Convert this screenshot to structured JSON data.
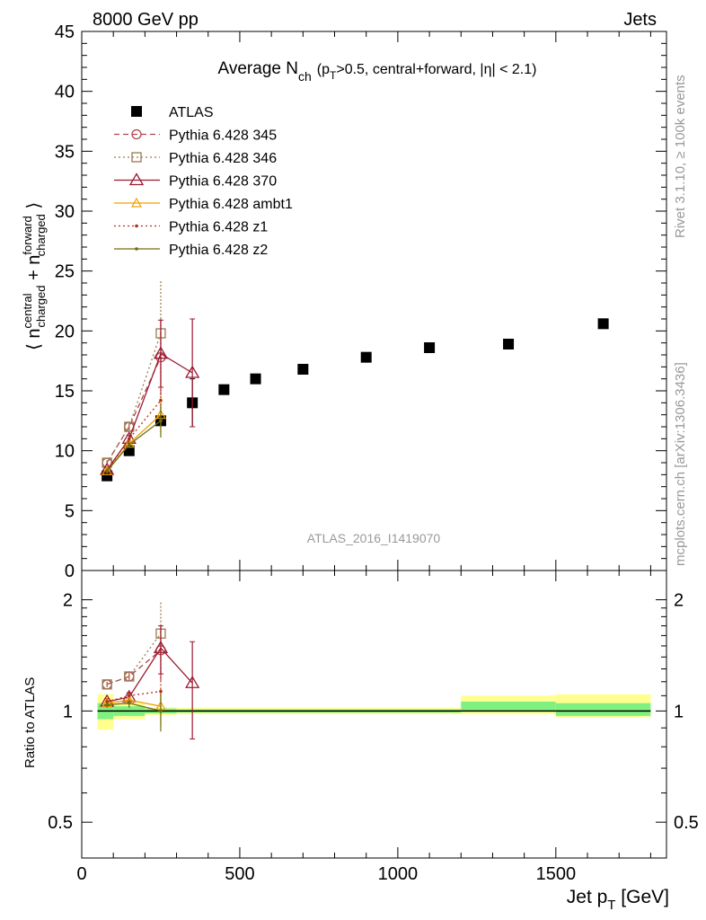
{
  "header": {
    "left": "8000 GeV pp",
    "right": "Jets"
  },
  "side_texts": {
    "rivet": "Rivet 3.1.10, ≥ 100k events",
    "mcplots": "mcplots.cern.ch [arXiv:1306.3436]"
  },
  "watermark": "ATLAS_2016_I1419070",
  "colors": {
    "ATLAS": "#000000",
    "p345": "#b0454f",
    "p346": "#9a7a4e",
    "p370": "#9c1a30",
    "ambt1": "#f0a000",
    "z1": "#b03020",
    "z2": "#6e6e10",
    "band_inner": "#80f080",
    "band_outer": "#ffff90"
  },
  "chart_data": [
    {
      "type": "scatter",
      "title": "Average N",
      "title_sub": "ch",
      "title_cond": "(p",
      "title_cond_sub": "T",
      "title_cond_rest": ">0.5, central+forward, |η| < 2.1)",
      "ylabel_parts": [
        "⟨ n",
        "central",
        "charged",
        " + n",
        "forward",
        "charged",
        " ⟩"
      ],
      "ylim": [
        0,
        45
      ],
      "yticks": [
        0,
        5,
        10,
        15,
        20,
        25,
        30,
        35,
        40,
        45
      ],
      "xlim": [
        0,
        1850
      ],
      "series": [
        {
          "name": "ATLAS",
          "key": "ATLAS",
          "marker": "square-filled",
          "line": "none",
          "points": [
            [
              80,
              7.9
            ],
            [
              150,
              10.0
            ],
            [
              250,
              12.5
            ],
            [
              350,
              14.0
            ],
            [
              450,
              15.1
            ],
            [
              550,
              16.0
            ],
            [
              700,
              16.8
            ],
            [
              900,
              17.8
            ],
            [
              1100,
              18.6
            ],
            [
              1350,
              18.9
            ],
            [
              1650,
              20.6
            ]
          ],
          "yerr": [
            0.3,
            0.3,
            0.3,
            2.0,
            0.3,
            0.3,
            0.3,
            0.3,
            0.3,
            0.3,
            0.3
          ]
        },
        {
          "name": "Pythia 6.428 345",
          "key": "p345",
          "marker": "circle-open",
          "line": "dashed",
          "points": [
            [
              80,
              9.0
            ],
            [
              150,
              12.0
            ],
            [
              250,
              17.8
            ]
          ],
          "yerr": [
            0.2,
            0.3,
            3.2
          ]
        },
        {
          "name": "Pythia 6.428 346",
          "key": "p346",
          "marker": "square-open",
          "line": "dotted",
          "points": [
            [
              80,
              9.0
            ],
            [
              150,
              12.0
            ],
            [
              250,
              19.8
            ]
          ],
          "yerr": [
            0.2,
            0.3,
            4.5
          ]
        },
        {
          "name": "Pythia 6.428 370",
          "key": "p370",
          "marker": "triangle-open",
          "line": "solid",
          "points": [
            [
              80,
              8.4
            ],
            [
              150,
              11.0
            ],
            [
              250,
              18.1
            ],
            [
              350,
              16.5
            ]
          ],
          "yerr": [
            0.2,
            0.3,
            2.8,
            4.5
          ]
        },
        {
          "name": "Pythia 6.428 ambt1",
          "key": "ambt1",
          "marker": "triangle-open-small",
          "line": "solid",
          "points": [
            [
              80,
              8.3
            ],
            [
              150,
              10.6
            ],
            [
              250,
              13.0
            ]
          ],
          "yerr": [
            0.2,
            0.3,
            1.5
          ]
        },
        {
          "name": "Pythia 6.428 z1",
          "key": "z1",
          "marker": "dot",
          "line": "dotted",
          "points": [
            [
              80,
              8.3
            ],
            [
              150,
              11.0
            ],
            [
              250,
              14.2
            ]
          ],
          "yerr": [
            0.2,
            0.3,
            1.6
          ]
        },
        {
          "name": "Pythia 6.428 z2",
          "key": "z2",
          "marker": "dot",
          "line": "solid",
          "points": [
            [
              80,
              8.3
            ],
            [
              150,
              10.5
            ],
            [
              250,
              12.5
            ]
          ],
          "yerr": [
            0.2,
            0.3,
            1.4
          ]
        }
      ]
    },
    {
      "type": "scatter",
      "ylabel": "Ratio to ATLAS",
      "xlabel": "Jet p",
      "xlabel_sub": "T",
      "xlabel_unit": " [GeV]",
      "yscale": "log",
      "ylim": [
        0.4,
        2.4
      ],
      "yticks": [
        0.5,
        1,
        2
      ],
      "xlim": [
        0,
        1850
      ],
      "xticks": [
        0,
        500,
        1000,
        1500
      ],
      "bands": [
        {
          "x0": 50,
          "x1": 100,
          "inner": [
            0.95,
            1.05
          ],
          "outer": [
            0.89,
            1.11
          ]
        },
        {
          "x0": 100,
          "x1": 200,
          "inner": [
            0.97,
            1.03
          ],
          "outer": [
            0.95,
            1.05
          ]
        },
        {
          "x0": 200,
          "x1": 300,
          "inner": [
            0.985,
            1.015
          ],
          "outer": [
            0.975,
            1.025
          ]
        },
        {
          "x0": 300,
          "x1": 1200,
          "inner": [
            0.99,
            1.01
          ],
          "outer": [
            0.98,
            1.02
          ]
        },
        {
          "x0": 1200,
          "x1": 1500,
          "inner": [
            1.0,
            1.06
          ],
          "outer": [
            0.98,
            1.1
          ]
        },
        {
          "x0": 1500,
          "x1": 1800,
          "inner": [
            0.97,
            1.05
          ],
          "outer": [
            0.96,
            1.11
          ]
        }
      ],
      "series": [
        {
          "key": "p345",
          "points": [
            [
              80,
              1.18
            ],
            [
              150,
              1.24
            ],
            [
              250,
              1.46
            ]
          ],
          "yerr": [
            0.02,
            0.03,
            0.25
          ]
        },
        {
          "key": "p346",
          "points": [
            [
              80,
              1.18
            ],
            [
              150,
              1.24
            ],
            [
              250,
              1.62
            ]
          ],
          "yerr": [
            0.02,
            0.03,
            0.35
          ]
        },
        {
          "key": "p370",
          "points": [
            [
              80,
              1.06
            ],
            [
              150,
              1.09
            ],
            [
              250,
              1.48
            ],
            [
              350,
              1.19
            ]
          ],
          "yerr": [
            0.02,
            0.03,
            0.22,
            0.35
          ]
        },
        {
          "key": "ambt1",
          "points": [
            [
              80,
              1.05
            ],
            [
              150,
              1.07
            ],
            [
              250,
              1.03
            ]
          ],
          "yerr": [
            0.02,
            0.03,
            0.12
          ]
        },
        {
          "key": "z1",
          "points": [
            [
              80,
              1.06
            ],
            [
              150,
              1.1
            ],
            [
              250,
              1.13
            ]
          ],
          "yerr": [
            0.02,
            0.03,
            0.13
          ]
        },
        {
          "key": "z2",
          "points": [
            [
              80,
              1.04
            ],
            [
              150,
              1.05
            ],
            [
              250,
              1.0
            ]
          ],
          "yerr": [
            0.02,
            0.03,
            0.12
          ]
        }
      ]
    }
  ]
}
